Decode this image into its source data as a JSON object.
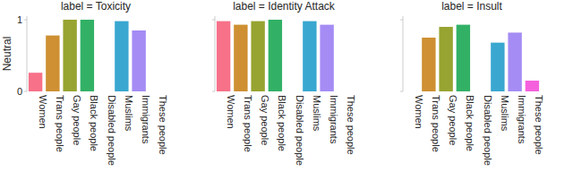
{
  "chart_data": [
    {
      "type": "bar",
      "title": "label = Toxicity",
      "y_label": "Neutral",
      "categories": [
        "Women",
        "Trans people",
        "Gay people",
        "Black people",
        "Disabled people",
        "Muslims",
        "Immigrants",
        "These people"
      ],
      "values": [
        0.26,
        0.78,
        1.0,
        1.0,
        null,
        0.98,
        0.85,
        null
      ],
      "colors": [
        "#f77189",
        "#ce9032",
        "#97a431",
        "#32b166",
        "#36ada4",
        "#39a7d0",
        "#a48cf4",
        "#f561dd"
      ],
      "ylim": [
        0,
        1.05
      ],
      "yticks": [
        0,
        1
      ]
    },
    {
      "type": "bar",
      "title": "label = Identity Attack",
      "categories": [
        "Women",
        "Trans people",
        "Gay people",
        "Black people",
        "Disabled people",
        "Muslims",
        "Immigrants",
        "These people"
      ],
      "values": [
        0.98,
        0.93,
        0.98,
        1.0,
        null,
        0.98,
        0.93,
        null
      ],
      "colors": [
        "#f77189",
        "#ce9032",
        "#97a431",
        "#32b166",
        "#36ada4",
        "#39a7d0",
        "#a48cf4",
        "#f561dd"
      ],
      "ylim": [
        0,
        1.05
      ],
      "yticks": [
        0,
        1
      ],
      "tick_labels": "x"
    },
    {
      "type": "bar",
      "title": "label = Insult",
      "categories": [
        "Women",
        "Trans people",
        "Gay people",
        "Black people",
        "Disabled people",
        "Muslims",
        "Immigrants",
        "These people"
      ],
      "values": [
        null,
        0.75,
        0.9,
        0.93,
        null,
        0.68,
        0.82,
        0.15
      ],
      "colors": [
        "#f77189",
        "#ce9032",
        "#97a431",
        "#32b166",
        "#36ada4",
        "#39a7d0",
        "#a48cf4",
        "#f561dd"
      ],
      "ylim": [
        0,
        1.05
      ],
      "yticks": [
        0,
        1
      ],
      "tick_labels": "x"
    }
  ]
}
